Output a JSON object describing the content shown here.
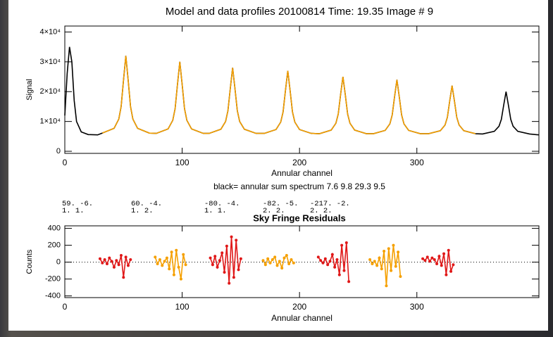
{
  "chart_data": [
    {
      "type": "line",
      "title": "Model and data profiles     20100814   Time: 19.35  Image #  9",
      "xlabel": "Annular channel",
      "ylabel": "Signal",
      "annotations": [
        "black= annular sum spectrum   7.6  9.8  29.3  9.5"
      ],
      "parameters": [
        [
          "59.  -6.",
          "1.  1."
        ],
        [
          "60.  -4.",
          "1.  2."
        ],
        [
          "-80.  -4.",
          "1.  1."
        ],
        [
          "-82.  -5.",
          "2.  2."
        ],
        [
          "-217.  -2.",
          "2.  2."
        ]
      ],
      "xlim": [
        0,
        404
      ],
      "xticks": [
        0,
        100,
        200,
        300
      ],
      "ylim": [
        -700,
        42000
      ],
      "yticks": [
        0,
        {
          "value": 10000,
          "label": "1×10⁴"
        },
        {
          "value": 20000,
          "label": "2×10⁴"
        },
        {
          "value": 30000,
          "label": "3×10⁴"
        },
        {
          "value": 40000,
          "label": "4×10⁴"
        }
      ],
      "x": [
        0,
        2,
        4,
        6,
        8,
        10,
        14,
        20,
        28,
        32,
        42,
        46,
        48,
        50,
        52,
        54,
        56,
        58,
        62,
        72,
        78,
        88,
        92,
        94,
        96,
        98,
        100,
        102,
        104,
        108,
        118,
        123,
        133,
        137,
        139,
        141,
        143,
        145,
        147,
        149,
        153,
        163,
        170,
        180,
        184,
        186,
        188,
        190,
        192,
        194,
        196,
        200,
        210,
        217,
        227,
        231,
        233,
        235,
        237,
        239,
        241,
        243,
        247,
        257,
        263,
        273,
        277,
        279,
        281,
        283,
        285,
        287,
        289,
        293,
        303,
        310,
        320,
        324,
        326,
        328,
        330,
        332,
        334,
        336,
        340,
        350,
        356,
        366,
        370,
        372,
        374,
        376,
        378,
        380,
        382,
        386,
        396,
        404
      ],
      "series": [
        {
          "name": "black",
          "color": "#000000",
          "values": [
            12000,
            26000,
            35000,
            30000,
            17000,
            10000,
            6500,
            5600,
            5500,
            6100,
            7700,
            10800,
            15000,
            23800,
            32000,
            23800,
            15000,
            10800,
            7700,
            6100,
            6000,
            7500,
            10400,
            14300,
            22400,
            30000,
            22400,
            14300,
            10400,
            7500,
            6000,
            6000,
            7400,
            10000,
            13600,
            21000,
            28000,
            21000,
            13600,
            10000,
            7400,
            6000,
            6000,
            7300,
            9800,
            13200,
            20300,
            27000,
            20300,
            13200,
            9800,
            7300,
            6000,
            5900,
            7100,
            9400,
            12500,
            19000,
            25000,
            19000,
            12500,
            9400,
            7100,
            5900,
            5900,
            7000,
            9200,
            12200,
            18300,
            24000,
            18300,
            12200,
            9200,
            7000,
            5900,
            5900,
            6900,
            8800,
            11400,
            16900,
            22000,
            16900,
            11400,
            8800,
            6900,
            5900,
            5800,
            6700,
            8400,
            10700,
            15500,
            20000,
            15500,
            10700,
            8400,
            6700,
            5800,
            5500
          ]
        },
        {
          "color": "#f5a000",
          "values": [
            null,
            null,
            null,
            null,
            null,
            null,
            null,
            null,
            null,
            6100,
            7700,
            10800,
            15000,
            23800,
            32000,
            23800,
            15000,
            10800,
            7700,
            6100,
            6000,
            7500,
            10400,
            14300,
            22400,
            30000,
            22400,
            14300,
            10400,
            7500,
            6000,
            6000,
            7400,
            10000,
            13600,
            21000,
            28000,
            21000,
            13600,
            10000,
            7400,
            6000,
            6000,
            7300,
            9800,
            13200,
            20300,
            27000,
            20300,
            13200,
            9800,
            7300,
            6000,
            5900,
            7100,
            9400,
            12500,
            19000,
            25000,
            19000,
            12500,
            9400,
            7100,
            5900,
            5900,
            7000,
            9200,
            12200,
            18300,
            24000,
            18300,
            12200,
            9200,
            7000,
            5900,
            5900,
            6900,
            8800,
            11400,
            16900,
            22000,
            16900,
            11400,
            8800,
            6900,
            5900,
            null,
            null,
            null,
            null,
            null,
            null,
            null,
            null,
            null,
            null,
            null,
            null
          ]
        }
      ]
    },
    {
      "type": "line",
      "markers": true,
      "zero_line": true,
      "title": "Sky Fringe Residuals",
      "xlabel": "Annular channel",
      "ylabel": "Counts",
      "xlim": [
        0,
        404
      ],
      "xticks": [
        0,
        100,
        200,
        300
      ],
      "ylim": [
        -420,
        430
      ],
      "yticks": [
        -400,
        -200,
        0,
        200,
        400
      ],
      "series": [
        {
          "color": "#e01818",
          "x": [
            30,
            32,
            34,
            36,
            38,
            40,
            42,
            44,
            46,
            48,
            50,
            52,
            54,
            56
          ],
          "values": [
            40,
            -10,
            30,
            -20,
            50,
            10,
            -60,
            20,
            -30,
            80,
            -180,
            60,
            -40,
            30
          ]
        },
        {
          "color": "#f5a000",
          "x": [
            77,
            79,
            81,
            83,
            85,
            87,
            89,
            91,
            93,
            95,
            97,
            99,
            101,
            103
          ],
          "values": [
            60,
            -20,
            30,
            -40,
            10,
            50,
            -80,
            120,
            -150,
            140,
            -60,
            -200,
            90,
            -30
          ]
        },
        {
          "color": "#e01818",
          "x": [
            124,
            126,
            128,
            130,
            132,
            134,
            136,
            138,
            140,
            142,
            144,
            146,
            148,
            150
          ],
          "values": [
            50,
            -30,
            70,
            -60,
            20,
            110,
            -120,
            190,
            -250,
            300,
            -180,
            260,
            -90,
            40
          ]
        },
        {
          "color": "#f5a000",
          "x": [
            169,
            171,
            173,
            175,
            177,
            179,
            181,
            183,
            185,
            187,
            189,
            191,
            193,
            195
          ],
          "values": [
            20,
            -30,
            40,
            -10,
            30,
            60,
            -40,
            10,
            -70,
            50,
            80,
            -20,
            30,
            -10
          ]
        },
        {
          "color": "#e01818",
          "x": [
            216,
            218,
            220,
            222,
            224,
            226,
            228,
            230,
            232,
            234,
            236,
            238,
            240,
            242
          ],
          "values": [
            60,
            20,
            -10,
            40,
            -30,
            10,
            90,
            -60,
            30,
            -150,
            200,
            -100,
            230,
            -230
          ]
        },
        {
          "color": "#f5a000",
          "x": [
            260,
            262,
            264,
            266,
            268,
            270,
            272,
            274,
            276,
            278,
            280,
            282,
            284,
            286
          ],
          "values": [
            30,
            -20,
            10,
            -40,
            50,
            -80,
            130,
            -280,
            160,
            -100,
            200,
            -50,
            120,
            -170
          ]
        },
        {
          "color": "#e01818",
          "x": [
            305,
            307,
            309,
            311,
            313,
            315,
            317,
            319,
            321,
            323,
            325,
            327,
            329,
            331
          ],
          "values": [
            40,
            20,
            60,
            10,
            50,
            30,
            -20,
            70,
            -40,
            100,
            -150,
            140,
            -110,
            -30
          ]
        }
      ]
    }
  ]
}
